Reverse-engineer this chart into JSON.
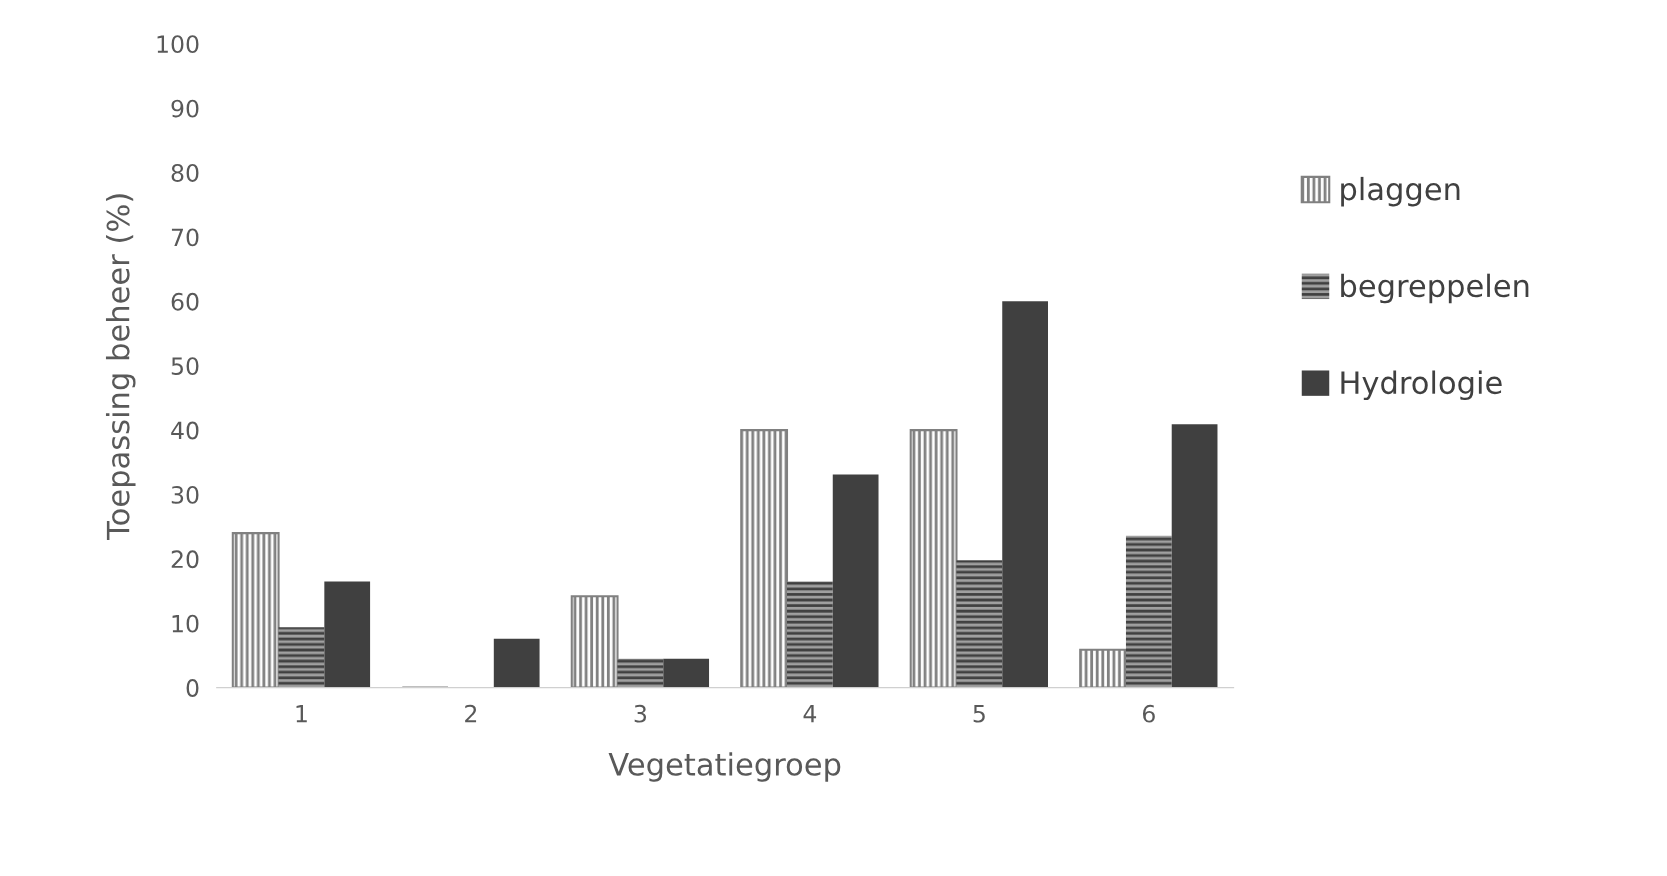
{
  "chart_data": {
    "type": "bar",
    "xlabel": "Vegetatiegroep",
    "ylabel": "Toepassing beheer (%)",
    "categories": [
      "1",
      "2",
      "3",
      "4",
      "5",
      "6"
    ],
    "series": [
      {
        "name": "plaggen",
        "color": "#808080",
        "values": [
          24,
          0,
          14.2,
          40,
          40,
          5.9
        ]
      },
      {
        "name": "begreppelen",
        "color": "#404040",
        "values": [
          9.4,
          0,
          4.5,
          16.5,
          19.8,
          23.6
        ]
      },
      {
        "name": "Hydrologie",
        "color": "#404040",
        "values": [
          16.5,
          7.6,
          4.5,
          33.1,
          60,
          40.9
        ]
      }
    ],
    "ylim": [
      0,
      100
    ],
    "yticks": [
      0,
      10,
      20,
      30,
      40,
      50,
      60,
      70,
      80,
      90,
      100
    ],
    "grid": false,
    "legend": "right"
  }
}
